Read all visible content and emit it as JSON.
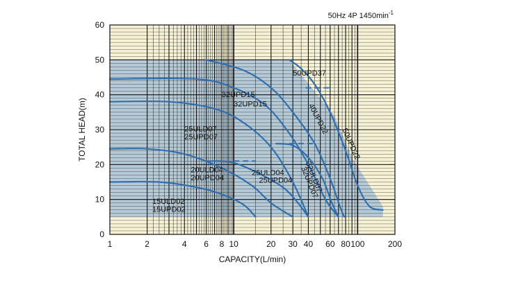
{
  "chart_data": {
    "type": "line",
    "title": "",
    "subtitle": "50Hz 4P 1450min",
    "subtitle_superscript": "-1",
    "xlabel": "CAPACITY(L/min)",
    "ylabel": "TOTAL HEAD(m)",
    "x_scale": "log",
    "xlim": [
      1,
      200
    ],
    "ylim": [
      0,
      60
    ],
    "x_ticks": [
      {
        "value": 1,
        "label": "1"
      },
      {
        "value": 2,
        "label": "2"
      },
      {
        "value": 4,
        "label": "4"
      },
      {
        "value": 6,
        "label": "6"
      },
      {
        "value": 8,
        "label": "8"
      },
      {
        "value": 10,
        "label": "10"
      },
      {
        "value": 20,
        "label": "20"
      },
      {
        "value": 30,
        "label": "30"
      },
      {
        "value": 40,
        "label": "40"
      },
      {
        "value": 60,
        "label": "60"
      },
      {
        "value": 80,
        "label": "80"
      },
      {
        "value": 100,
        "label": "100"
      },
      {
        "value": 200,
        "label": "200"
      }
    ],
    "y_ticks": [
      0,
      10,
      20,
      30,
      40,
      50,
      60
    ],
    "grid": true,
    "colors": {
      "plot_bg": "#f7f2d6",
      "envelope": "#a9c3d6",
      "curve": "#2f6fb0",
      "grid": "#111111"
    },
    "envelope": [
      [
        1,
        5
      ],
      [
        1,
        50
      ],
      [
        28,
        50
      ],
      [
        65,
        34
      ],
      [
        90,
        22
      ],
      [
        160,
        8
      ],
      [
        160,
        5
      ]
    ],
    "series": [
      {
        "name": "15ULD02 / 15UPD02",
        "points": [
          [
            1,
            15
          ],
          [
            2.5,
            15
          ],
          [
            5,
            13.5
          ],
          [
            8,
            11.5
          ],
          [
            12,
            8.5
          ],
          [
            15,
            5
          ]
        ]
      },
      {
        "name": "20ULD04 / 20UPD04",
        "points": [
          [
            1,
            24.5
          ],
          [
            2,
            24.5
          ],
          [
            4,
            23
          ],
          [
            8,
            19
          ],
          [
            14,
            14
          ],
          [
            20,
            9
          ],
          [
            30,
            5
          ]
        ]
      },
      {
        "name": "25ULD04 / 25UPD04",
        "points": [
          [
            6,
            21
          ],
          [
            10,
            20.5
          ],
          [
            18,
            16.5
          ],
          [
            26,
            13
          ],
          [
            33,
            9
          ],
          [
            40,
            5
          ]
        ]
      },
      {
        "name": "25ULD07 / 25UPD07",
        "points": [
          [
            1,
            38
          ],
          [
            3,
            38
          ],
          [
            7,
            36
          ],
          [
            12,
            32
          ],
          [
            20,
            25
          ],
          [
            30,
            15
          ],
          [
            40,
            5
          ]
        ]
      },
      {
        "name": "32ULD07 / 32UPD07",
        "points": [
          [
            22,
            26
          ],
          [
            30,
            25.5
          ],
          [
            40,
            22
          ],
          [
            52,
            16
          ],
          [
            62,
            9
          ],
          [
            70,
            5
          ]
        ]
      },
      {
        "name": "32UPD15",
        "points": [
          [
            1,
            44.5
          ],
          [
            5,
            44.5
          ],
          [
            10,
            42
          ],
          [
            18,
            37
          ],
          [
            28,
            29
          ],
          [
            40,
            20
          ],
          [
            55,
            10
          ],
          [
            70,
            5
          ]
        ]
      },
      {
        "name": "40UPD22",
        "points": [
          [
            6,
            50
          ],
          [
            12,
            47
          ],
          [
            20,
            42
          ],
          [
            30,
            35
          ],
          [
            45,
            26
          ],
          [
            60,
            16
          ],
          [
            72,
            8
          ],
          [
            78,
            5
          ]
        ]
      },
      {
        "name": "50UPD37 / 50UPD22",
        "points": [
          [
            28,
            50
          ],
          [
            35,
            47.5
          ],
          [
            45,
            43
          ],
          [
            60,
            35
          ],
          [
            80,
            24
          ],
          [
            100,
            14
          ],
          [
            125,
            8
          ],
          [
            160,
            7
          ]
        ]
      }
    ],
    "rated_lines": [
      {
        "name": "50UPD37 limit",
        "points": [
          [
            38,
            42
          ],
          [
            60,
            42
          ]
        ]
      },
      {
        "name": "40UPD22 limit",
        "points": [
          [
            28,
            26
          ],
          [
            45,
            26
          ]
        ]
      },
      {
        "name": "25UPD07 limit",
        "points": [
          [
            10,
            21
          ],
          [
            15,
            21
          ]
        ]
      }
    ],
    "labels": [
      {
        "text": "50UPD37",
        "x": 30,
        "y": 45.5,
        "rotate": 0
      },
      {
        "text": "32UPD15",
        "x": 8,
        "y": 39.3,
        "rotate": 0
      },
      {
        "text": "32UPD15",
        "x": 10,
        "y": 36.7,
        "rotate": 0
      },
      {
        "text": "40UPD22",
        "x": 40,
        "y": 37,
        "rotate": 62
      },
      {
        "text": "50UPD22",
        "x": 75,
        "y": 30,
        "rotate": 66
      },
      {
        "text": "25ULD07",
        "x": 4,
        "y": 29.5,
        "rotate": 0
      },
      {
        "text": "25UPD07",
        "x": 4,
        "y": 27.2,
        "rotate": 0
      },
      {
        "text": "32ULD07",
        "x": 38,
        "y": 20.5,
        "rotate": 68
      },
      {
        "text": "32UPD07",
        "x": 35,
        "y": 19,
        "rotate": 68
      },
      {
        "text": "20ULD04",
        "x": 4.5,
        "y": 17.8,
        "rotate": 0
      },
      {
        "text": "20UPD04",
        "x": 4.5,
        "y": 15.5,
        "rotate": 0
      },
      {
        "text": "25ULD04",
        "x": 14,
        "y": 17,
        "rotate": 0
      },
      {
        "text": "25UPD04",
        "x": 16,
        "y": 14.8,
        "rotate": 0
      },
      {
        "text": "15ULD02",
        "x": 2.2,
        "y": 8.7,
        "rotate": 0
      },
      {
        "text": "15UPD02",
        "x": 2.2,
        "y": 6.5,
        "rotate": 0
      }
    ]
  }
}
